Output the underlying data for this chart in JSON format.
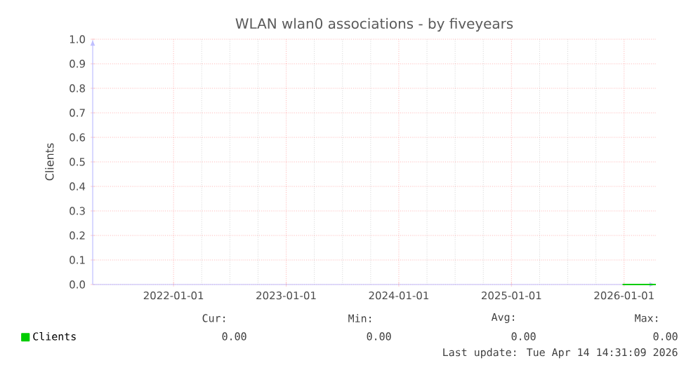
{
  "chart_data": {
    "type": "line",
    "title": "WLAN wlan0 associations - by fiveyears",
    "ylabel": "Clients",
    "series": [
      {
        "name": "Clients",
        "color": "#00cc00",
        "x": [
          "2025-12-27",
          "2026-04-14"
        ],
        "values": [
          0,
          0
        ]
      }
    ],
    "xlim": [
      "2021-04-14",
      "2026-04-14"
    ],
    "xticks": [
      "2022-01-01",
      "2023-01-01",
      "2024-01-01",
      "2025-01-01",
      "2026-01-01"
    ],
    "ylim": [
      0,
      1
    ],
    "yticks": [
      {
        "value": 0,
        "label": "0.0"
      },
      {
        "value": 0.1,
        "label": "0.1"
      },
      {
        "value": 0.2,
        "label": "0.2"
      },
      {
        "value": 0.3,
        "label": "0.3"
      },
      {
        "value": 0.4,
        "label": "0.4"
      },
      {
        "value": 0.5,
        "label": "0.5"
      },
      {
        "value": 0.6,
        "label": "0.6"
      },
      {
        "value": 0.7,
        "label": "0.7"
      },
      {
        "value": 0.8,
        "label": "0.8"
      },
      {
        "value": 0.9,
        "label": "0.9"
      },
      {
        "value": 1,
        "label": "1.0"
      }
    ],
    "grid": true,
    "legend": "bottom left",
    "marker": "none",
    "line_style": "solid",
    "annotations": [
      "Cur:",
      "0.00",
      "Min:",
      "0.00",
      "Avg:",
      "0.00",
      "Max:",
      "0.00",
      "Last update: Tue Apr 14 14:31:09 2026"
    ]
  }
}
